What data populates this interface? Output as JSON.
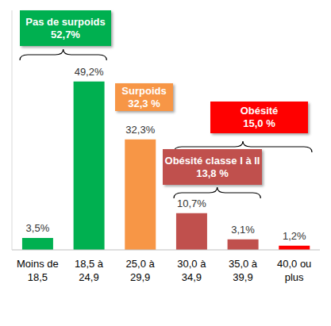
{
  "chart_data": {
    "type": "bar",
    "categories": [
      "Moins de 18,5",
      "18,5 à 24,9",
      "25,0 à 29,9",
      "30,0 à 34,9",
      "35,0 à 39,9",
      "40,0 ou plus"
    ],
    "values": [
      3.5,
      49.2,
      32.3,
      10.7,
      3.1,
      1.2
    ],
    "value_labels": [
      "3,5%",
      "49,2%",
      "32,3%",
      "10,7%",
      "3,1%",
      "1,2%"
    ],
    "colors": [
      "#00b050",
      "#00b050",
      "#f79646",
      "#c0504d",
      "#c0504d",
      "#ff0000"
    ],
    "ylim": [
      0,
      70
    ],
    "tick_labels": "x",
    "data_labels": true,
    "annotations": [
      {
        "text": [
          "Pas de surpoids",
          "52,7%"
        ],
        "color": "#00b050",
        "from": "Moins de 18,5",
        "to": "18,5 à 24,9"
      },
      {
        "text": [
          "Surpoids",
          "32,3 %"
        ],
        "color": "#f79646",
        "from": "25,0 à 29,9",
        "to": "25,0 à 29,9"
      },
      {
        "text": [
          "Obésité",
          "15,0 %"
        ],
        "color": "#ff0000",
        "from": "30,0 à 34,9",
        "to": "40,0 ou plus"
      },
      {
        "text": [
          "Obésité classe I à II",
          "13,8 %"
        ],
        "color": "#c0504d",
        "from": "30,0 à 34,9",
        "to": "35,0 à 39,9"
      }
    ]
  }
}
